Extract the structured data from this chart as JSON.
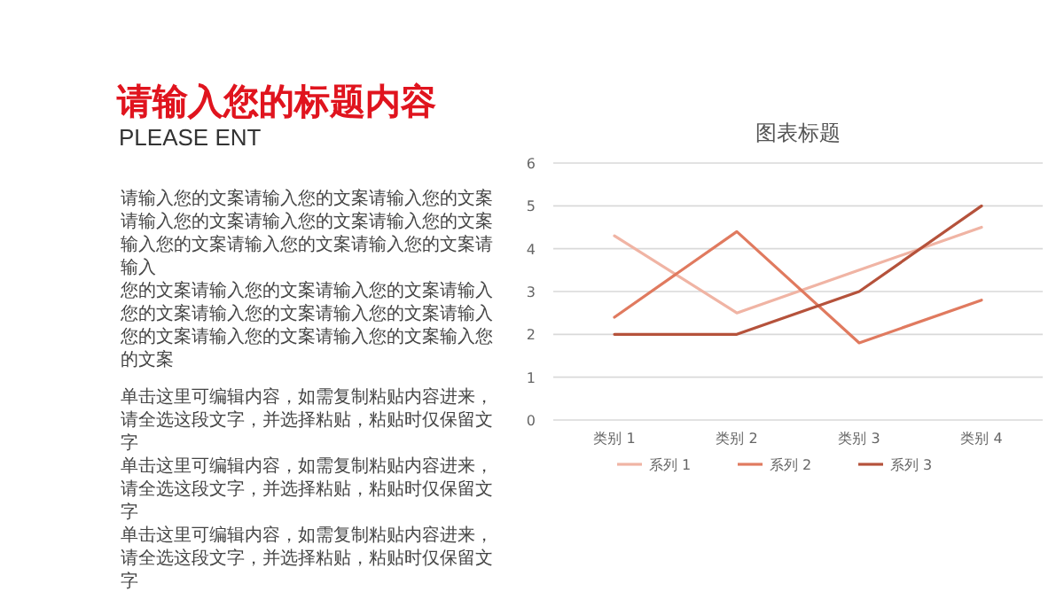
{
  "chart_data": [
    {
      "type": "other",
      "title": "请输入您的标题内容",
      "subtitle": "PLEASE ENT",
      "annotations": [
        "请输入您的文案请输入您的文案请输入您的文案请输入您的文案请输入您的文案请输入您的文案输入您的文案请输入您的文案请输入您的文案请输入",
        "您的文案请输入您的文案请输入您的文案请输入您的文案请输入您的文案请输入您的文案请输入您的文案请输入您的文案请输入您的文案输入您的文案",
        "单击这里可编辑内容，如需复制粘贴内容进来，请全选这段文字，并选择粘贴，粘贴时仅保留文字",
        "单击这里可编辑内容，如需复制粘贴内容进来，请全选这段文字，并选择粘贴，粘贴时仅保留文字",
        "单击这里可编辑内容，如需复制粘贴内容进来，请全选这段文字，并选择粘贴，粘贴时仅保留文字"
      ]
    },
    {
      "type": "line",
      "title": "图表标题",
      "categories": [
        "类别 1",
        "类别 2",
        "类别 3",
        "类别 4"
      ],
      "series": [
        {
          "name": "系列 1",
          "color": "#f0b4a4",
          "values": [
            4.3,
            2.5,
            3.5,
            4.5
          ]
        },
        {
          "name": "系列 2",
          "color": "#e07a5f",
          "values": [
            2.4,
            4.4,
            1.8,
            2.8
          ]
        },
        {
          "name": "系列 3",
          "color": "#b5523b",
          "values": [
            2,
            2,
            3,
            5
          ]
        }
      ],
      "ylim": [
        0,
        6
      ],
      "yticks": [
        0,
        1,
        2,
        3,
        4,
        5,
        6
      ],
      "grid": "y",
      "legend": "bottom"
    }
  ]
}
